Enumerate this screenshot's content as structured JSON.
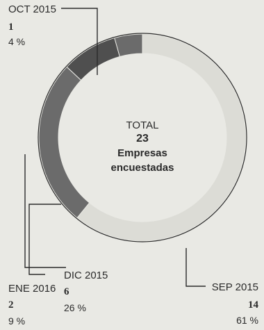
{
  "chart_data": {
    "type": "pie",
    "center": {
      "total_label": "TOTAL",
      "total_value": "23",
      "line1": "Empresas",
      "line2": "encuestadas"
    },
    "slices": [
      {
        "label": "SEP 2015",
        "count": "14",
        "percent": "61 %",
        "value": 14,
        "color": "#dcdcd6"
      },
      {
        "label": "DIC 2015",
        "count": "6",
        "percent": "26 %",
        "value": 6,
        "color": "#6b6b6b"
      },
      {
        "label": "ENE 2016",
        "count": "2",
        "percent": "9 %",
        "value": 2,
        "color": "#4f4f4f"
      },
      {
        "label": "OCT 2015",
        "count": "1",
        "percent": "4 %",
        "value": 1,
        "color": "#6b6b6b"
      }
    ]
  }
}
